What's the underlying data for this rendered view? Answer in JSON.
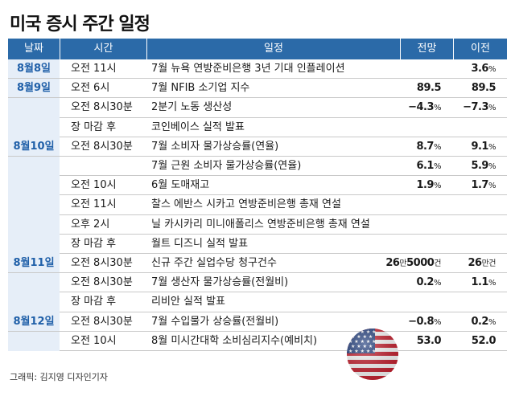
{
  "title": "미국 증시 주간 일정",
  "headers": {
    "date": "날짜",
    "time": "시간",
    "event": "일정",
    "forecast": "전망",
    "previous": "이전"
  },
  "rows": [
    {
      "date": "8월8일",
      "time": "오전 11시",
      "event": "7월 뉴욕 연방준비은행 3년 기대 인플레이션",
      "forecast": "",
      "previous": "3.6",
      "previous_unit": "%"
    },
    {
      "date": "8월9일",
      "time": "오전 6시",
      "event": "7월 NFIB 소기업 지수",
      "forecast": "89.5",
      "previous": "89.5"
    },
    {
      "date": "",
      "time": "오전 8시30분",
      "event": "2분기 노동 생산성",
      "forecast": "−4.3",
      "forecast_unit": "%",
      "previous": "−7.3",
      "previous_unit": "%"
    },
    {
      "date": "",
      "time": "장 마감 후",
      "event": "코인베이스 실적 발표",
      "forecast": "",
      "previous": ""
    },
    {
      "date": "8월10일",
      "time": "오전 8시30분",
      "event": "7월 소비자 물가상승률(연율)",
      "forecast": "8.7",
      "forecast_unit": "%",
      "previous": "9.1",
      "previous_unit": "%"
    },
    {
      "date": "",
      "time": "",
      "event": "7월 근원 소비자 물가상승률(연율)",
      "forecast": "6.1",
      "forecast_unit": "%",
      "previous": "5.9",
      "previous_unit": "%"
    },
    {
      "date": "",
      "time": "오전 10시",
      "event": "6월 도매재고",
      "forecast": "1.9",
      "forecast_unit": "%",
      "previous": "1.7",
      "previous_unit": "%"
    },
    {
      "date": "",
      "time": "오전 11시",
      "event": "찰스 에반스 시카고 연방준비은행 총재 연설",
      "forecast": "",
      "previous": ""
    },
    {
      "date": "",
      "time": "오후 2시",
      "event": "닐 카시카리 미니애폴리스 연방준비은행 총재 연설",
      "forecast": "",
      "previous": ""
    },
    {
      "date": "",
      "time": "장 마감 후",
      "event": "월트 디즈니 실적 발표",
      "forecast": "",
      "previous": ""
    },
    {
      "date": "8월11일",
      "time": "오전 8시30분",
      "event": "신규 주간 실업수당 청구건수",
      "forecast": "26",
      "forecast_mid": "만",
      "forecast_num2": "5000",
      "forecast_unit": "건",
      "previous": "26",
      "previous_unit": "만건"
    },
    {
      "date": "",
      "time": "오전 8시30분",
      "event": "7월 생산자 물가상승률(전월비)",
      "forecast": "0.2",
      "forecast_unit": "%",
      "previous": "1.1",
      "previous_unit": "%"
    },
    {
      "date": "",
      "time": "장 마감 후",
      "event": "리비안 실적 발표",
      "forecast": "",
      "previous": ""
    },
    {
      "date": "8월12일",
      "time": "오전 8시30분",
      "event": "7월 수입물가 상승률(전월비)",
      "forecast": "−0.8",
      "forecast_unit": "%",
      "previous": "0.2",
      "previous_unit": "%"
    },
    {
      "date": "",
      "time": "오전 10시",
      "event": "8월 미시간대학 소비심리지수(예비치)",
      "forecast": "53.0",
      "previous": "52.0"
    }
  ],
  "credit": "그래픽: 김지영 디자인기자",
  "colors": {
    "header": "#2b6aa8",
    "date_col": "#e6eef8",
    "date_text": "#1f5fa8"
  },
  "decoration": "us-flag-globe-icon"
}
